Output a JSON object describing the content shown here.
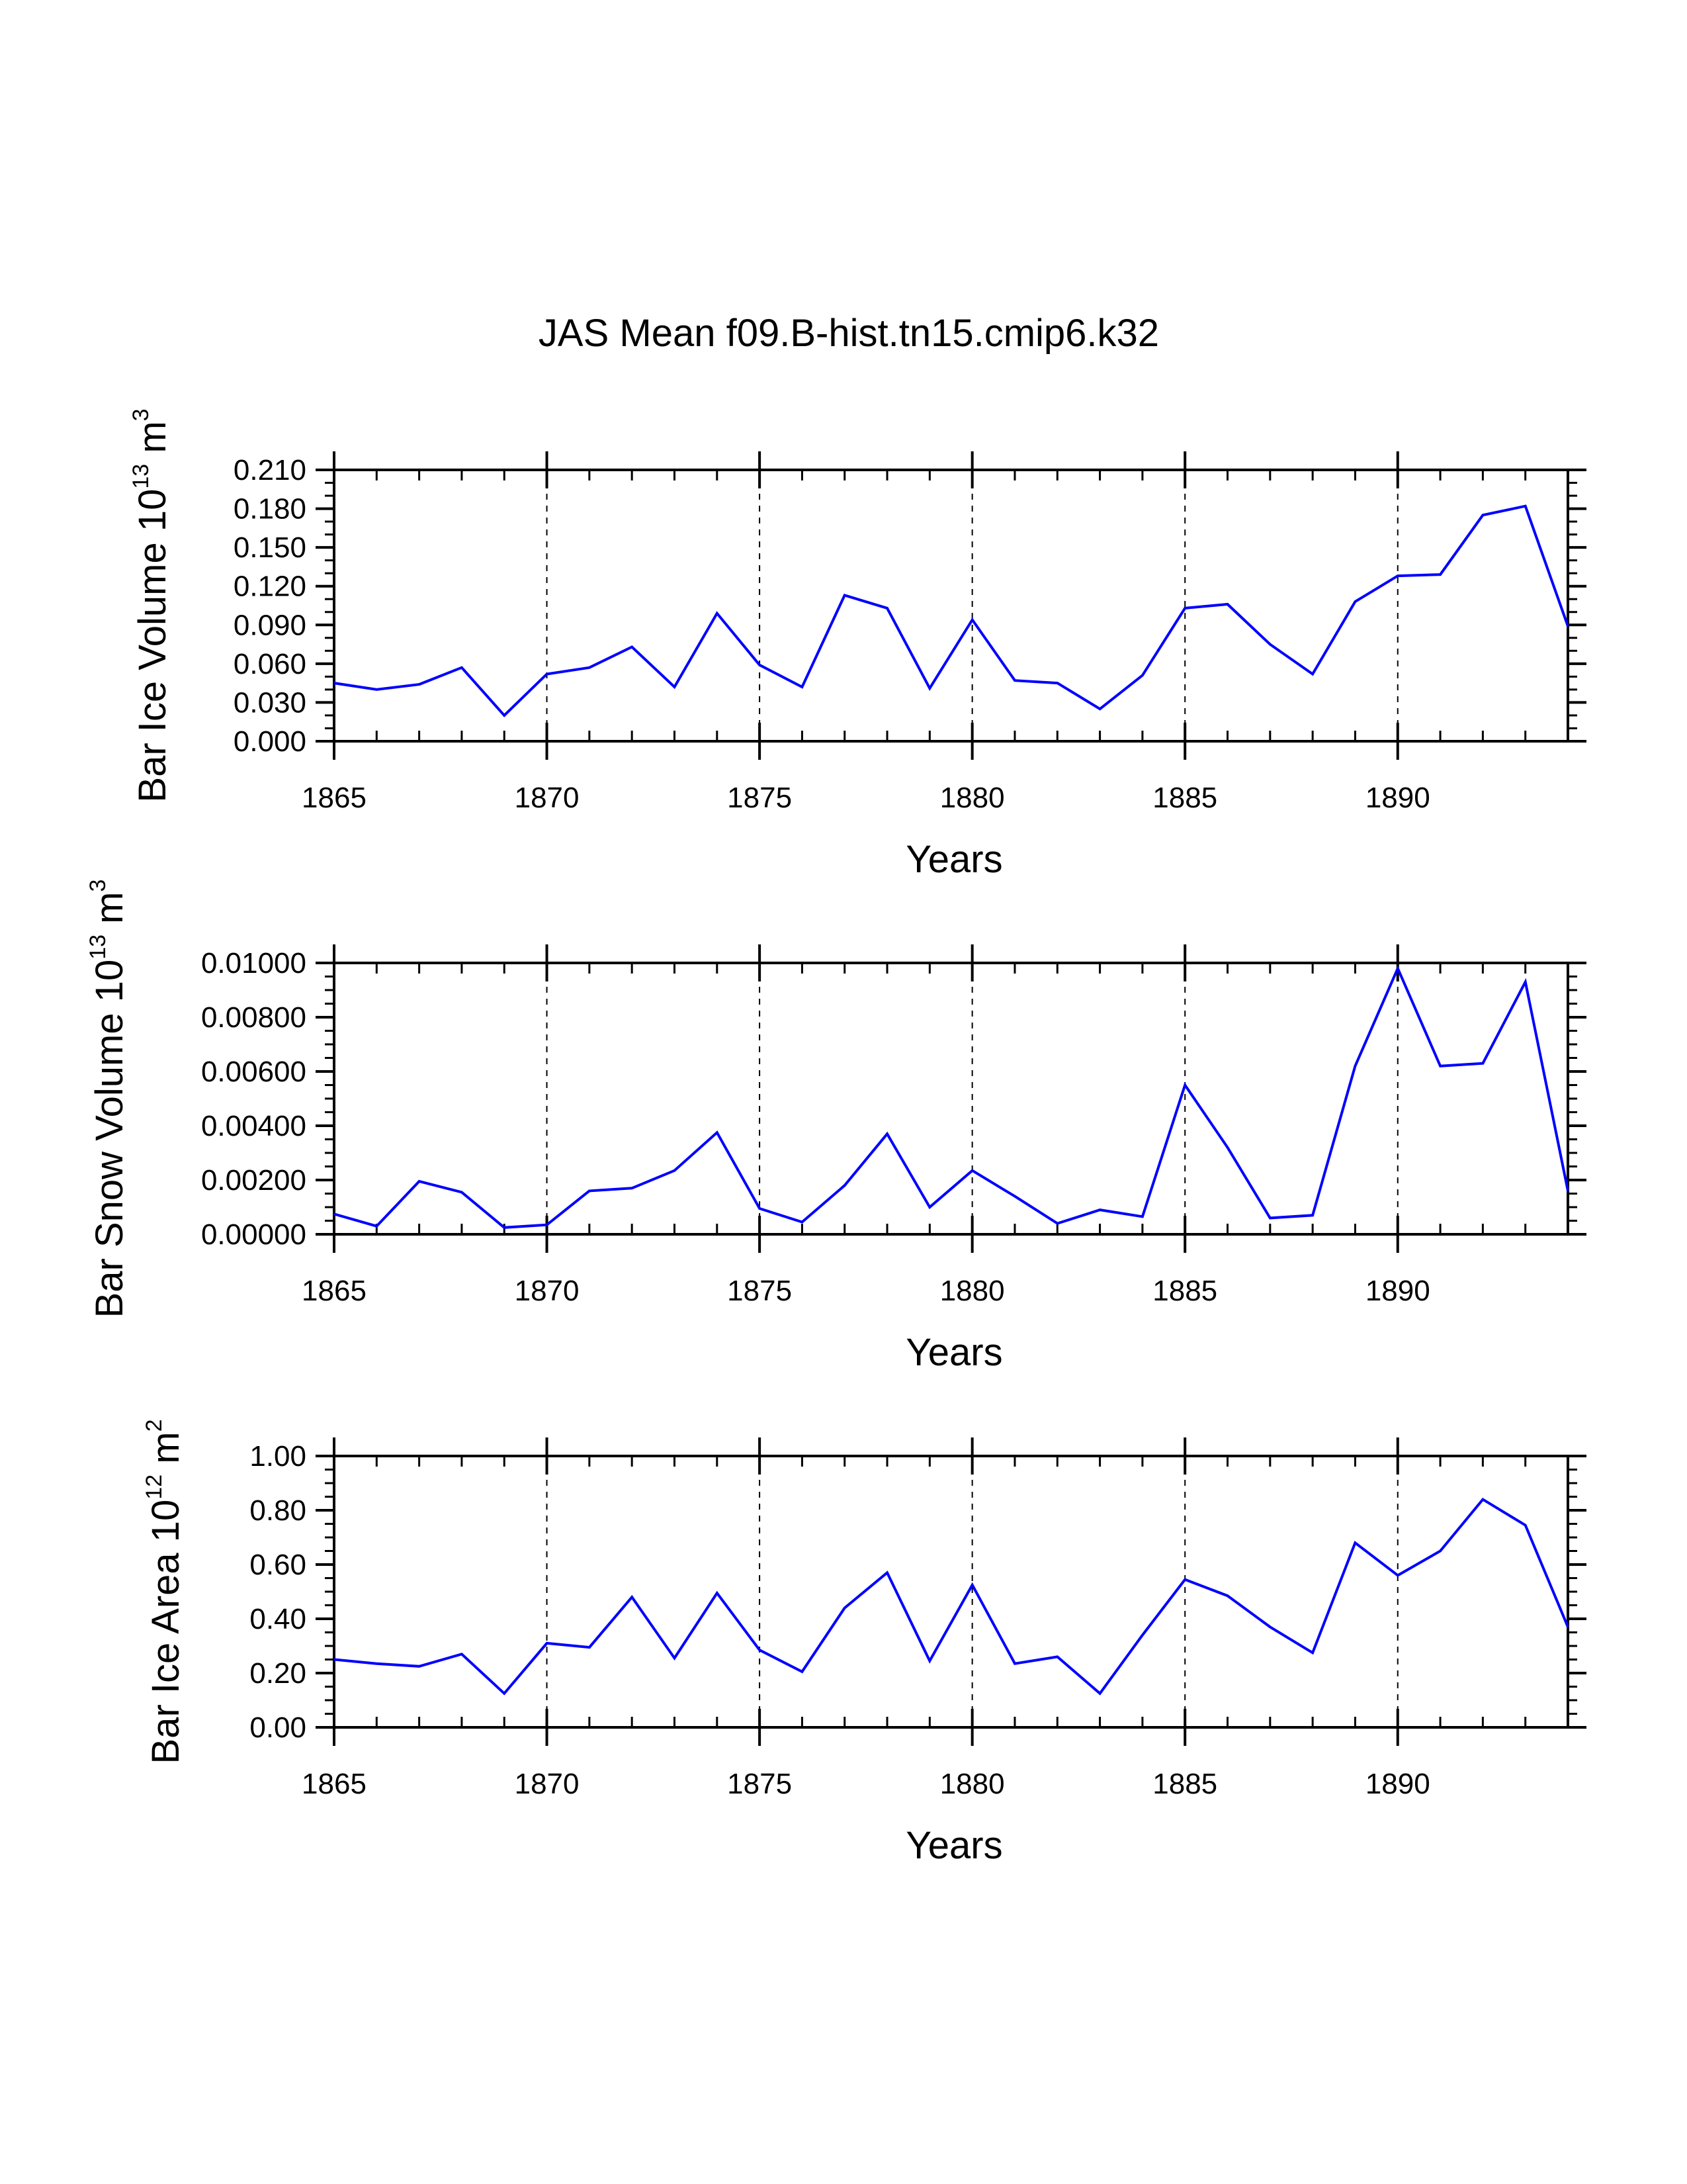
{
  "title": "JAS Mean f09.B-hist.tn15.cmip6.k32",
  "colors": {
    "line": "#0000ff",
    "axes": "#000000",
    "grid": "#000000"
  },
  "chart_data": [
    {
      "type": "line",
      "xlabel": "Years",
      "ylabel": {
        "main": "Bar Ice Volume 10",
        "exp": "13",
        "unit": "m",
        "unit_exp": "3"
      },
      "xlim": [
        1865,
        1894
      ],
      "ylim": [
        0,
        0.21
      ],
      "xticks": [
        "1865",
        "1870",
        "1875",
        "1880",
        "1885",
        "1890"
      ],
      "xtick_values": [
        1865,
        1870,
        1875,
        1880,
        1885,
        1890
      ],
      "yticks": [
        "0.000",
        "0.030",
        "0.060",
        "0.090",
        "0.120",
        "0.150",
        "0.180",
        "0.210"
      ],
      "ytick_values": [
        0,
        0.03,
        0.06,
        0.09,
        0.12,
        0.15,
        0.18,
        0.21
      ],
      "yminor_step": 0.01,
      "grid": "dashed vertical at major x ticks",
      "x": [
        1865,
        1866,
        1867,
        1868,
        1869,
        1870,
        1871,
        1872,
        1873,
        1874,
        1875,
        1876,
        1877,
        1878,
        1879,
        1880,
        1881,
        1882,
        1883,
        1884,
        1885,
        1886,
        1887,
        1888,
        1889,
        1890,
        1891,
        1892,
        1893,
        1894
      ],
      "series": [
        {
          "name": "Bar Ice Volume",
          "values": [
            0.045,
            0.04,
            0.044,
            0.057,
            0.02,
            0.052,
            0.057,
            0.073,
            0.042,
            0.099,
            0.059,
            0.042,
            0.113,
            0.103,
            0.041,
            0.094,
            0.047,
            0.045,
            0.025,
            0.051,
            0.103,
            0.106,
            0.075,
            0.052,
            0.108,
            0.128,
            0.129,
            0.175,
            0.182,
            0.089
          ]
        }
      ]
    },
    {
      "type": "line",
      "xlabel": "Years",
      "ylabel": {
        "main": "Bar Snow Volume 10",
        "exp": "13",
        "unit": "m",
        "unit_exp": "3"
      },
      "xlim": [
        1865,
        1894
      ],
      "ylim": [
        0,
        0.01
      ],
      "xticks": [
        "1865",
        "1870",
        "1875",
        "1880",
        "1885",
        "1890"
      ],
      "xtick_values": [
        1865,
        1870,
        1875,
        1880,
        1885,
        1890
      ],
      "yticks": [
        "0.00000",
        "0.00200",
        "0.00400",
        "0.00600",
        "0.00800",
        "0.01000"
      ],
      "ytick_values": [
        0,
        0.002,
        0.004,
        0.006,
        0.008,
        0.01
      ],
      "yminor_step": 0.0005,
      "grid": "dashed vertical at major x ticks",
      "x": [
        1865,
        1866,
        1867,
        1868,
        1869,
        1870,
        1871,
        1872,
        1873,
        1874,
        1875,
        1876,
        1877,
        1878,
        1879,
        1880,
        1881,
        1882,
        1883,
        1884,
        1885,
        1886,
        1887,
        1888,
        1889,
        1890,
        1891,
        1892,
        1893,
        1894
      ],
      "series": [
        {
          "name": "Bar Snow Volume",
          "values": [
            0.00075,
            0.0003,
            0.00195,
            0.00155,
            0.00025,
            0.00035,
            0.0016,
            0.0017,
            0.00235,
            0.00375,
            0.00095,
            0.00045,
            0.0018,
            0.0037,
            0.001,
            0.00235,
            0.0014,
            0.0004,
            0.0009,
            0.00065,
            0.0055,
            0.0032,
            0.0006,
            0.0007,
            0.0062,
            0.0098,
            0.0062,
            0.0063,
            0.0093,
            0.0016
          ]
        }
      ]
    },
    {
      "type": "line",
      "xlabel": "Years",
      "ylabel": {
        "main": "Bar Ice Area 10",
        "exp": "12",
        "unit": "m",
        "unit_exp": "2"
      },
      "xlim": [
        1865,
        1894
      ],
      "ylim": [
        0,
        1.0
      ],
      "xticks": [
        "1865",
        "1870",
        "1875",
        "1880",
        "1885",
        "1890"
      ],
      "xtick_values": [
        1865,
        1870,
        1875,
        1880,
        1885,
        1890
      ],
      "yticks": [
        "0.00",
        "0.20",
        "0.40",
        "0.60",
        "0.80",
        "1.00"
      ],
      "ytick_values": [
        0,
        0.2,
        0.4,
        0.6,
        0.8,
        1.0
      ],
      "yminor_step": 0.05,
      "grid": "dashed vertical at major x ticks",
      "x": [
        1865,
        1866,
        1867,
        1868,
        1869,
        1870,
        1871,
        1872,
        1873,
        1874,
        1875,
        1876,
        1877,
        1878,
        1879,
        1880,
        1881,
        1882,
        1883,
        1884,
        1885,
        1886,
        1887,
        1888,
        1889,
        1890,
        1891,
        1892,
        1893,
        1894
      ],
      "series": [
        {
          "name": "Bar Ice Area",
          "values": [
            0.25,
            0.235,
            0.225,
            0.27,
            0.125,
            0.31,
            0.295,
            0.48,
            0.255,
            0.495,
            0.285,
            0.205,
            0.44,
            0.57,
            0.245,
            0.525,
            0.235,
            0.26,
            0.125,
            0.34,
            0.545,
            0.485,
            0.37,
            0.275,
            0.68,
            0.56,
            0.65,
            0.84,
            0.745,
            0.37
          ]
        }
      ]
    }
  ]
}
